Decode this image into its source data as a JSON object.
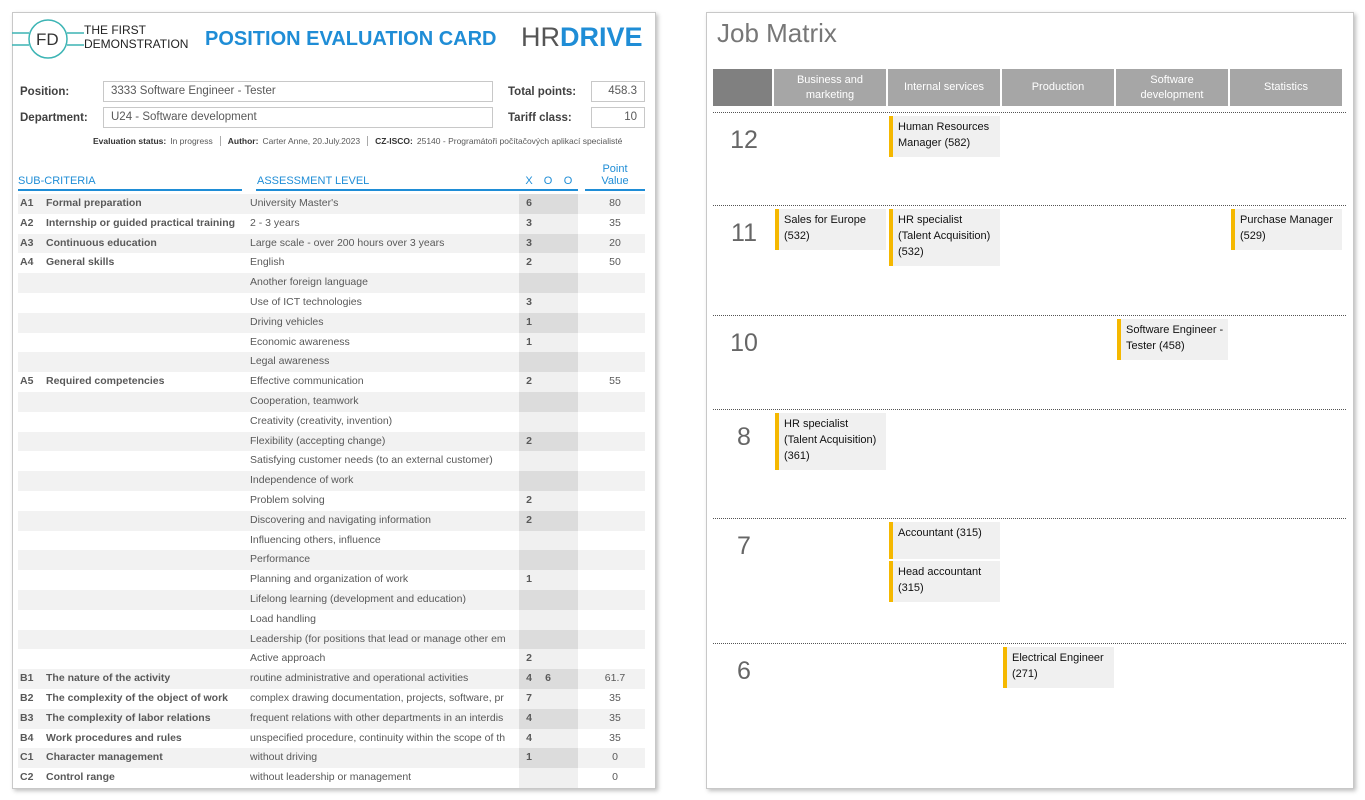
{
  "header": {
    "logo_initials": "FD",
    "logo_name": [
      "THE FIRST",
      "DEMONSTRATION"
    ],
    "title": "POSITION EVALUATION CARD",
    "brand": {
      "hr": "HR",
      "drive": "DRIVE"
    }
  },
  "fields": {
    "position": {
      "label": "Position:",
      "value": "3333 Software Engineer - Tester"
    },
    "department": {
      "label": "Department:",
      "value": "U24 - Software development"
    },
    "total_points": {
      "label": "Total points:",
      "value": "458.3"
    },
    "tariff_class": {
      "label": "Tariff class:",
      "value": "10"
    }
  },
  "status": [
    {
      "label": "Evaluation status:",
      "value": "In progress"
    },
    {
      "label": "Author:",
      "value": "Carter Anne, 20.July.2023"
    },
    {
      "label": "CZ-ISCO:",
      "value": "25140 - Programátoři počítačových aplikací specialisté"
    }
  ],
  "table": {
    "columns": [
      "SUB-CRITERIA",
      "ASSESSMENT LEVEL",
      "X",
      "O",
      "O",
      "Point Value"
    ],
    "rows": [
      [
        "A1",
        "Formal preparation",
        "University Master's",
        "6",
        null,
        null,
        "80"
      ],
      [
        "A2",
        "Internship or guided practical training",
        "2 - 3 years",
        "3",
        null,
        null,
        "35"
      ],
      [
        "A3",
        "Continuous education",
        "Large scale - over 200 hours over 3 years",
        "3",
        null,
        null,
        "20"
      ],
      [
        "A4",
        "General skills",
        "English",
        "2",
        null,
        null,
        "50"
      ],
      [
        null,
        null,
        "Another foreign language",
        null,
        null,
        null,
        null
      ],
      [
        null,
        null,
        "Use of ICT technologies",
        "3",
        null,
        null,
        null
      ],
      [
        null,
        null,
        "Driving vehicles",
        "1",
        null,
        null,
        null
      ],
      [
        null,
        null,
        "Economic awareness",
        "1",
        null,
        null,
        null
      ],
      [
        null,
        null,
        "Legal awareness",
        null,
        null,
        null,
        null
      ],
      [
        "A5",
        "Required competencies",
        "Effective communication",
        "2",
        null,
        null,
        "55"
      ],
      [
        null,
        null,
        "Cooperation, teamwork",
        null,
        null,
        null,
        null
      ],
      [
        null,
        null,
        "Creativity (creativity, invention)",
        null,
        null,
        null,
        null
      ],
      [
        null,
        null,
        "Flexibility (accepting change)",
        "2",
        null,
        null,
        null
      ],
      [
        null,
        null,
        "Satisfying customer needs (to an external customer)",
        null,
        null,
        null,
        null
      ],
      [
        null,
        null,
        "Independence of work",
        null,
        null,
        null,
        null
      ],
      [
        null,
        null,
        "Problem solving",
        "2",
        null,
        null,
        null
      ],
      [
        null,
        null,
        "Discovering and navigating information",
        "2",
        null,
        null,
        null
      ],
      [
        null,
        null,
        "Influencing others, influence",
        null,
        null,
        null,
        null
      ],
      [
        null,
        null,
        "Performance",
        null,
        null,
        null,
        null
      ],
      [
        null,
        null,
        "Planning and organization of work",
        "1",
        null,
        null,
        null
      ],
      [
        null,
        null,
        "Lifelong learning (development and education)",
        null,
        null,
        null,
        null
      ],
      [
        null,
        null,
        "Load handling",
        null,
        null,
        null,
        null
      ],
      [
        null,
        null,
        "Leadership (for positions that lead or manage other em",
        null,
        null,
        null,
        null
      ],
      [
        null,
        null,
        "Active approach",
        "2",
        null,
        null,
        null
      ],
      [
        "B1",
        "The nature of the activity",
        "routine administrative and operational activities",
        "4",
        "6",
        null,
        "61.7"
      ],
      [
        "B2",
        "The complexity of the object of work",
        "complex drawing documentation, projects, software, pr",
        "7",
        null,
        null,
        "35"
      ],
      [
        "B3",
        "The complexity of labor relations",
        "frequent relations with other departments in an interdis",
        "4",
        null,
        null,
        "35"
      ],
      [
        "B4",
        "Work procedures and rules",
        "unspecified procedure, continuity within the scope of th",
        "4",
        null,
        null,
        "35"
      ],
      [
        "C1",
        "Character management",
        "without driving",
        "1",
        null,
        null,
        "0"
      ],
      [
        "C2",
        "Control range",
        "without leadership or management",
        null,
        null,
        null,
        "0"
      ]
    ]
  },
  "job_matrix": {
    "title": "Job Matrix",
    "columns": [
      "Business and marketing",
      "Internal services",
      "Production",
      "Software development",
      "Statistics"
    ],
    "rows": [
      {
        "grade": "12",
        "cells": [
          [],
          [
            "Human Resources Manager (582)"
          ],
          [],
          [],
          []
        ]
      },
      {
        "grade": "11",
        "cells": [
          [
            "Sales for Europe (532)"
          ],
          [
            "HR specialist (Talent Acquisition) (532)"
          ],
          [],
          [],
          [
            "Purchase Manager (529)"
          ]
        ]
      },
      {
        "grade": "10",
        "cells": [
          [],
          [],
          [],
          [
            "Software Engineer - Tester (458)"
          ],
          []
        ]
      },
      {
        "grade": "8",
        "cells": [
          [
            "HR specialist (Talent Acquisition) (361)"
          ],
          [],
          [],
          [],
          []
        ]
      },
      {
        "grade": "7",
        "cells": [
          [],
          [
            "Accountant (315)",
            "Head accountant (315)"
          ],
          [],
          [],
          []
        ]
      },
      {
        "grade": "6",
        "cells": [
          [],
          [],
          [
            "Electrical Engineer (271)"
          ],
          [],
          []
        ]
      }
    ]
  }
}
